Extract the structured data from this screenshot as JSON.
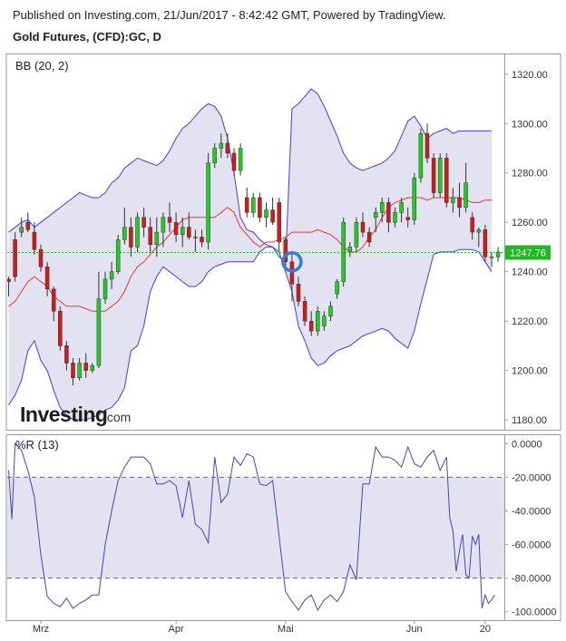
{
  "header": {
    "published": "Published on Investing.com, 21/Jun/2017 - 8:42:42 GMT, Powered by TradingView.",
    "instrument": "Gold Futures, (CFD):GC, D"
  },
  "colors": {
    "up": "#1fcf1f",
    "down": "#d11a1a",
    "band_line": "#4040dd",
    "band_fill": "#e2e2f1",
    "basis": "#e03a3a",
    "wr_line": "#4848a8",
    "price_line": "#21b821",
    "marker": "#2f7fd8"
  },
  "chart_data": [
    {
      "type": "candlestick",
      "title": "BB (20, 2)",
      "ylim": [
        1176,
        1328
      ],
      "y_ticks": [
        "1320.00",
        "1300.00",
        "1280.00",
        "1260.00",
        "1240.00",
        "1220.00",
        "1200.00",
        "1180.00"
      ],
      "x_ticks": [
        "Mrz",
        "Apr",
        "Mai",
        "Jun",
        "20"
      ],
      "x_tick_index": [
        5,
        26,
        43,
        63,
        74
      ],
      "last_price": "1247.76",
      "last_price_value": 1247.76,
      "watermark": {
        "brand": "Investing",
        "suffix": ".com"
      },
      "marker_index": 44,
      "marker_value": 1244,
      "candles": [
        [
          1237,
          1238,
          1230,
          1236
        ],
        [
          1253,
          1256,
          1236,
          1238
        ],
        [
          1256,
          1262,
          1254,
          1258
        ],
        [
          1260,
          1264,
          1256,
          1257
        ],
        [
          1256,
          1260,
          1247,
          1249
        ],
        [
          1249,
          1251,
          1240,
          1242
        ],
        [
          1242,
          1244,
          1230,
          1233
        ],
        [
          1233,
          1234,
          1220,
          1224
        ],
        [
          1224,
          1226,
          1208,
          1210
        ],
        [
          1210,
          1212,
          1200,
          1203
        ],
        [
          1203,
          1205,
          1194,
          1197
        ],
        [
          1197,
          1205,
          1196,
          1203
        ],
        [
          1203,
          1207,
          1197,
          1200
        ],
        [
          1200,
          1203,
          1199,
          1202
        ],
        [
          1202,
          1240,
          1201,
          1229
        ],
        [
          1229,
          1240,
          1227,
          1237
        ],
        [
          1237,
          1244,
          1233,
          1240
        ],
        [
          1240,
          1255,
          1239,
          1253
        ],
        [
          1253,
          1266,
          1251,
          1258
        ],
        [
          1258,
          1262,
          1246,
          1250
        ],
        [
          1250,
          1264,
          1248,
          1262
        ],
        [
          1262,
          1266,
          1254,
          1258
        ],
        [
          1258,
          1262,
          1248,
          1251
        ],
        [
          1251,
          1262,
          1246,
          1256
        ],
        [
          1256,
          1264,
          1250,
          1262
        ],
        [
          1262,
          1268,
          1256,
          1260
        ],
        [
          1260,
          1264,
          1252,
          1255
        ],
        [
          1255,
          1262,
          1250,
          1258
        ],
        [
          1258,
          1264,
          1253,
          1254
        ],
        [
          1254,
          1257,
          1248,
          1254
        ],
        [
          1254,
          1257,
          1250,
          1252
        ],
        [
          1252,
          1288,
          1249,
          1284
        ],
        [
          1284,
          1292,
          1282,
          1290
        ],
        [
          1290,
          1296,
          1286,
          1292
        ],
        [
          1292,
          1296,
          1286,
          1288
        ],
        [
          1288,
          1290,
          1279,
          1281
        ],
        [
          1281,
          1292,
          1279,
          1290
        ],
        [
          1270,
          1274,
          1262,
          1264
        ],
        [
          1264,
          1272,
          1262,
          1270
        ],
        [
          1270,
          1272,
          1260,
          1262
        ],
        [
          1262,
          1268,
          1258,
          1265
        ],
        [
          1265,
          1270,
          1259,
          1260
        ],
        [
          1268,
          1270,
          1248,
          1252
        ],
        [
          1253,
          1254,
          1242,
          1244
        ],
        [
          1244,
          1248,
          1228,
          1235
        ],
        [
          1235,
          1238,
          1226,
          1228
        ],
        [
          1228,
          1230,
          1218,
          1220
        ],
        [
          1220,
          1224,
          1214,
          1216
        ],
        [
          1216,
          1226,
          1214,
          1224
        ],
        [
          1218,
          1224,
          1216,
          1222
        ],
        [
          1222,
          1228,
          1220,
          1226
        ],
        [
          1231,
          1237,
          1229,
          1236
        ],
        [
          1236,
          1262,
          1234,
          1260
        ],
        [
          1248,
          1252,
          1246,
          1250
        ],
        [
          1250,
          1262,
          1248,
          1260
        ],
        [
          1260,
          1264,
          1254,
          1256
        ],
        [
          1256,
          1258,
          1250,
          1252
        ],
        [
          1262,
          1266,
          1256,
          1264
        ],
        [
          1264,
          1270,
          1260,
          1268
        ],
        [
          1268,
          1270,
          1256,
          1260
        ],
        [
          1260,
          1266,
          1258,
          1264
        ],
        [
          1264,
          1270,
          1260,
          1268
        ],
        [
          1262,
          1266,
          1258,
          1261
        ],
        [
          1261,
          1280,
          1259,
          1278
        ],
        [
          1278,
          1298,
          1276,
          1296
        ],
        [
          1296,
          1300,
          1284,
          1286
        ],
        [
          1286,
          1288,
          1270,
          1272
        ],
        [
          1272,
          1288,
          1270,
          1286
        ],
        [
          1286,
          1288,
          1266,
          1268
        ],
        [
          1268,
          1274,
          1264,
          1270
        ],
        [
          1270,
          1276,
          1262,
          1266
        ],
        [
          1266,
          1284,
          1264,
          1276
        ],
        [
          1262,
          1264,
          1253,
          1256
        ],
        [
          1256,
          1258,
          1250,
          1257
        ],
        [
          1257,
          1259,
          1244,
          1246
        ],
        [
          1246,
          1248,
          1242,
          1246
        ],
        [
          1246,
          1250,
          1244,
          1248
        ]
      ],
      "upper_band": [
        1256,
        1258,
        1260,
        1261,
        1258,
        1260,
        1262,
        1264,
        1266,
        1268,
        1270,
        1272,
        1271,
        1270,
        1270,
        1272,
        1276,
        1278,
        1282,
        1284,
        1286,
        1285,
        1284,
        1283,
        1285,
        1289,
        1294,
        1298,
        1300,
        1303,
        1306,
        1308,
        1307,
        1303,
        1294,
        1280,
        1262,
        1257,
        1256,
        1253,
        1251,
        1250,
        1246,
        1244,
        1306,
        1308,
        1311,
        1314,
        1312,
        1307,
        1301,
        1295,
        1288,
        1284,
        1282,
        1281,
        1282,
        1283,
        1284,
        1286,
        1289,
        1295,
        1301,
        1303,
        1299,
        1294,
        1296,
        1297,
        1298,
        1296,
        1297,
        1297,
        1297,
        1297,
        1297,
        1297
      ],
      "lower_band": [
        1186,
        1190,
        1196,
        1208,
        1212,
        1204,
        1200,
        1192,
        1185,
        1182,
        1180,
        1180,
        1180,
        1181,
        1182,
        1184,
        1185,
        1188,
        1193,
        1208,
        1210,
        1218,
        1232,
        1238,
        1242,
        1240,
        1238,
        1236,
        1234,
        1234,
        1236,
        1240,
        1242,
        1243,
        1244,
        1244,
        1244,
        1244,
        1244,
        1248,
        1250,
        1250,
        1248,
        1240,
        1232,
        1218,
        1212,
        1205,
        1202,
        1203,
        1206,
        1208,
        1209,
        1210,
        1212,
        1214,
        1215,
        1216,
        1217,
        1216,
        1213,
        1211,
        1209,
        1216,
        1227,
        1237,
        1247,
        1248,
        1248,
        1248,
        1249,
        1249,
        1249,
        1248,
        1244,
        1240
      ],
      "basis": [
        1226,
        1228,
        1232,
        1236,
        1238,
        1236,
        1234,
        1230,
        1228,
        1226,
        1226,
        1226,
        1225,
        1224,
        1224,
        1224,
        1226,
        1228,
        1232,
        1238,
        1242,
        1244,
        1247,
        1250,
        1252,
        1255,
        1258,
        1261,
        1262,
        1262,
        1262,
        1262,
        1262,
        1264,
        1266,
        1264,
        1258,
        1255,
        1252,
        1250,
        1252,
        1252,
        1253,
        1254,
        1256,
        1256,
        1256,
        1256,
        1257,
        1256,
        1255,
        1253,
        1250,
        1248,
        1248,
        1250,
        1254,
        1257,
        1262,
        1266,
        1268,
        1269,
        1270,
        1270,
        1270,
        1269,
        1270,
        1270,
        1270,
        1270,
        1270,
        1269,
        1268,
        1268,
        1269,
        1269
      ]
    },
    {
      "type": "line",
      "title": "%R (13)",
      "ylim": [
        -105,
        5
      ],
      "y_ticks": [
        "0.0000",
        "-20.0000",
        "-40.0000",
        "-60.0000",
        "-80.0000",
        "-100.0000"
      ],
      "y_tick_values": [
        0,
        -20,
        -40,
        -60,
        -80,
        -100
      ],
      "band": [
        -20,
        -80
      ],
      "series": [
        {
          "values": [
            -16,
            -45,
            0,
            -2,
            -4,
            -16,
            -32,
            -66,
            -91,
            -95,
            -97,
            -92,
            -98,
            -95,
            -93,
            -90,
            -90,
            -60,
            -40,
            -22,
            -14,
            -8,
            -8,
            -8,
            -12,
            -24,
            -24,
            -22,
            -25,
            -44,
            -22,
            -48,
            -51,
            -59,
            -8,
            -35,
            -30,
            -8,
            -13,
            -6,
            -8,
            -24,
            -25,
            -22,
            -55,
            -88,
            -94,
            -99,
            -93,
            -90,
            -99,
            -93,
            -90,
            -94,
            -88,
            -72,
            -81,
            -24,
            -24,
            -2,
            -8,
            -8,
            -10,
            -14,
            -2,
            -12,
            -14,
            -8,
            -4,
            -16,
            -8,
            -44,
            -52,
            -76,
            -64,
            -54,
            -78,
            -80,
            -55,
            -60,
            -54,
            -98,
            -90,
            -95,
            -93,
            -90
          ],
          "x_index": [
            0,
            0.5,
            1,
            1.5,
            2,
            3,
            4,
            5,
            6,
            7,
            8,
            9,
            10,
            11,
            12,
            13,
            14,
            15,
            16,
            17,
            18,
            19,
            20,
            21,
            22,
            23,
            24,
            25,
            26,
            27,
            28,
            29,
            30,
            31,
            32,
            33,
            34,
            35,
            36,
            37,
            38,
            39,
            40,
            41,
            42,
            43,
            44,
            45,
            46,
            47,
            48,
            49,
            50,
            51,
            52,
            53,
            54,
            55,
            56,
            57,
            58,
            59,
            60,
            61,
            62,
            63,
            64,
            65,
            66,
            67,
            68,
            68.5,
            69,
            69.5,
            70,
            70.5,
            71,
            71.5,
            72,
            72.5,
            73,
            73.5,
            74,
            74.5,
            75,
            75.5
          ]
        }
      ],
      "x_ticks": [
        "Mrz",
        "Apr",
        "Mai",
        "Jun",
        "20"
      ]
    }
  ]
}
